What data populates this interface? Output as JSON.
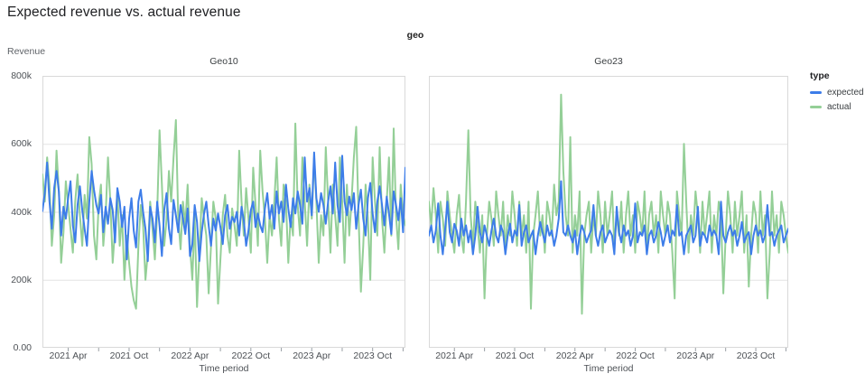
{
  "chart_data": {
    "type": "line",
    "title": "Expected revenue vs. actual revenue",
    "facet_field": "geo",
    "legend_title": "type",
    "legend_position": "right",
    "xlabel": "Time period",
    "ylabel": "Revenue",
    "ylim": [
      0,
      800000
    ],
    "values_unit": "thousands",
    "grid": true,
    "grid_color": "#e3e3e3",
    "border_color": "#d9d9d9",
    "tick_color": "#9aa0a6",
    "y_ticks": [
      {
        "value_k": 800,
        "label": "800k"
      },
      {
        "value_k": 600,
        "label": "600k"
      },
      {
        "value_k": 400,
        "label": "400k"
      },
      {
        "value_k": 200,
        "label": "200k"
      },
      {
        "value_k": 0,
        "label": "0.00"
      }
    ],
    "x_axis": {
      "interval": "week",
      "start": "2021-01",
      "end": "2023-12",
      "n_points": 156,
      "labeled_ticks": [
        {
          "i": 11,
          "label": "2021 Apr"
        },
        {
          "i": 37,
          "label": "2021 Oct"
        },
        {
          "i": 63,
          "label": "2022 Apr"
        },
        {
          "i": 89,
          "label": "2022 Oct"
        },
        {
          "i": 115,
          "label": "2023 Apr"
        },
        {
          "i": 141,
          "label": "2023 Oct"
        }
      ],
      "minor_tick_indices": [
        24,
        50,
        76,
        102,
        128,
        154
      ]
    },
    "series": [
      {
        "name": "expected",
        "color": "#3d7de9"
      },
      {
        "name": "actual",
        "color": "#94cf97"
      }
    ],
    "facets": [
      {
        "name": "Geo10",
        "expected": [
          402,
          455,
          545,
          430,
          350,
          470,
          520,
          460,
          330,
          415,
          380,
          440,
          490,
          360,
          310,
          420,
          475,
          405,
          350,
          300,
          430,
          520,
          465,
          420,
          395,
          450,
          340,
          415,
          365,
          440,
          405,
          310,
          470,
          430,
          355,
          415,
          260,
          380,
          440,
          345,
          295,
          430,
          465,
          400,
          350,
          255,
          415,
          380,
          310,
          430,
          360,
          270,
          405,
          455,
          350,
          305,
          435,
          390,
          340,
          420,
          380,
          335,
          410,
          270,
          305,
          420,
          370,
          255,
          340,
          395,
          430,
          360,
          300,
          380,
          345,
          395,
          355,
          305,
          390,
          420,
          350,
          385,
          370,
          400,
          330,
          415,
          375,
          300,
          345,
          405,
          430,
          355,
          395,
          360,
          340,
          410,
          455,
          380,
          420,
          350,
          460,
          395,
          430,
          370,
          480,
          410,
          355,
          440,
          395,
          460,
          420,
          365,
          560,
          430,
          470,
          390,
          575,
          440,
          400,
          455,
          420,
          365,
          430,
          475,
          395,
          545,
          420,
          370,
          565,
          430,
          390,
          445,
          405,
          455,
          350,
          420,
          465,
          380,
          330,
          440,
          485,
          395,
          340,
          430,
          475,
          420,
          360,
          445,
          395,
          335,
          460,
          420,
          375,
          440,
          340,
          530
        ],
        "actual": [
          510,
          430,
          560,
          480,
          300,
          390,
          580,
          460,
          250,
          340,
          490,
          420,
          350,
          280,
          430,
          510,
          390,
          300,
          450,
          380,
          620,
          540,
          330,
          260,
          420,
          480,
          300,
          390,
          560,
          430,
          250,
          350,
          460,
          300,
          390,
          200,
          330,
          250,
          180,
          140,
          115,
          300,
          420,
          360,
          200,
          280,
          430,
          350,
          260,
          400,
          640,
          480,
          300,
          380,
          520,
          430,
          560,
          670,
          380,
          290,
          430,
          360,
          480,
          300,
          200,
          390,
          120,
          280,
          440,
          380,
          330,
          160,
          300,
          430,
          380,
          130,
          260,
          390,
          450,
          330,
          280,
          410,
          360,
          300,
          580,
          430,
          330,
          470,
          380,
          280,
          530,
          420,
          300,
          580,
          460,
          380,
          250,
          390,
          330,
          430,
          560,
          380,
          300,
          480,
          430,
          250,
          390,
          330,
          660,
          420,
          330,
          560,
          430,
          300,
          480,
          380,
          560,
          430,
          250,
          390,
          330,
          590,
          430,
          280,
          480,
          390,
          300,
          560,
          430,
          250,
          480,
          330,
          430,
          560,
          650,
          390,
          165,
          300,
          480,
          380,
          200,
          560,
          430,
          330,
          590,
          380,
          280,
          430,
          560,
          330,
          645,
          390,
          290,
          480,
          390,
          360
        ]
      },
      {
        "name": "Geo23",
        "expected": [
          330,
          360,
          310,
          345,
          425,
          330,
          275,
          350,
          430,
          340,
          310,
          365,
          345,
          300,
          380,
          330,
          360,
          310,
          345,
          275,
          330,
          415,
          340,
          310,
          360,
          330,
          300,
          345,
          380,
          330,
          310,
          360,
          340,
          275,
          330,
          365,
          310,
          345,
          330,
          420,
          300,
          340,
          360,
          310,
          330,
          345,
          275,
          330,
          370,
          340,
          310,
          360,
          330,
          345,
          300,
          330,
          380,
          490,
          340,
          330,
          360,
          330,
          310,
          345,
          275,
          330,
          360,
          340,
          310,
          330,
          345,
          420,
          330,
          300,
          340,
          360,
          310,
          330,
          345,
          330,
          275,
          415,
          340,
          310,
          360,
          330,
          345,
          300,
          330,
          425,
          310,
          340,
          330,
          360,
          275,
          330,
          345,
          310,
          330,
          370,
          340,
          300,
          330,
          360,
          310,
          345,
          330,
          420,
          330,
          340,
          275,
          330,
          345,
          360,
          310,
          330,
          415,
          300,
          340,
          330,
          310,
          360,
          330,
          345,
          330,
          275,
          430,
          330,
          310,
          340,
          360,
          330,
          345,
          300,
          330,
          370,
          310,
          330,
          340,
          275,
          330,
          360,
          330,
          345,
          310,
          330,
          420,
          330,
          340,
          300,
          330,
          345,
          360,
          310,
          330,
          350
        ],
        "actual": [
          430,
          360,
          470,
          390,
          280,
          430,
          380,
          300,
          460,
          390,
          330,
          280,
          390,
          450,
          330,
          280,
          430,
          640,
          390,
          300,
          430,
          360,
          280,
          390,
          145,
          330,
          430,
          380,
          300,
          460,
          390,
          330,
          430,
          280,
          390,
          330,
          460,
          390,
          300,
          430,
          330,
          390,
          280,
          430,
          115,
          330,
          390,
          460,
          330,
          390,
          280,
          430,
          390,
          330,
          480,
          390,
          430,
          745,
          520,
          390,
          330,
          620,
          280,
          390,
          330,
          460,
          100,
          330,
          390,
          430,
          280,
          390,
          330,
          460,
          390,
          280,
          430,
          330,
          390,
          460,
          300,
          390,
          330,
          430,
          280,
          390,
          460,
          330,
          390,
          280,
          430,
          390,
          330,
          460,
          280,
          390,
          430,
          330,
          390,
          280,
          460,
          390,
          330,
          430,
          390,
          280,
          145,
          460,
          390,
          330,
          600,
          430,
          280,
          390,
          330,
          460,
          390,
          280,
          430,
          330,
          390,
          460,
          280,
          390,
          330,
          430,
          390,
          160,
          330,
          460,
          390,
          280,
          430,
          330,
          390,
          460,
          280,
          390,
          180,
          330,
          430,
          390,
          280,
          460,
          330,
          390,
          145,
          280,
          460,
          330,
          390,
          280,
          430,
          390,
          330,
          280
        ]
      }
    ]
  }
}
